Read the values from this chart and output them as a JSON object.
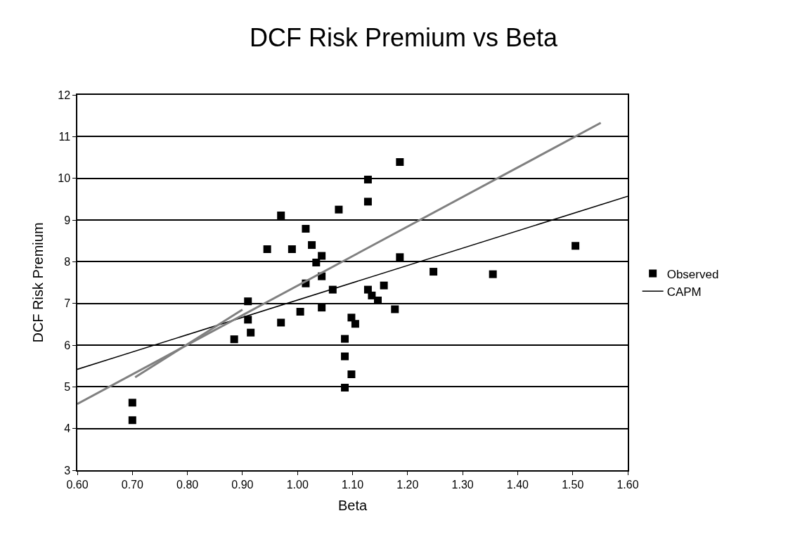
{
  "chart_data": {
    "type": "scatter",
    "title": "DCF Risk Premium vs Beta",
    "xlabel": "Beta",
    "ylabel": "DCF Risk Premium",
    "xlim": [
      0.6,
      1.6
    ],
    "xticks": [
      {
        "value": 0.6,
        "label": "0.60"
      },
      {
        "value": 0.7,
        "label": "0.70"
      },
      {
        "value": 0.8,
        "label": "0.80"
      },
      {
        "value": 0.9,
        "label": "0.90"
      },
      {
        "value": 1.0,
        "label": "1.00"
      },
      {
        "value": 1.1,
        "label": "1.10"
      },
      {
        "value": 1.2,
        "label": "1.20"
      },
      {
        "value": 1.3,
        "label": "1.30"
      },
      {
        "value": 1.4,
        "label": "1.40"
      },
      {
        "value": 1.5,
        "label": "1.50"
      },
      {
        "value": 1.6,
        "label": "1.60"
      }
    ],
    "ylim": [
      3,
      12
    ],
    "yticks": [
      3,
      4,
      5,
      6,
      7,
      8,
      9,
      10,
      11,
      12
    ],
    "grid": "y",
    "legend": "right",
    "series": [
      {
        "name": "Observed",
        "marker": "square",
        "color": "#000000",
        "x": [
          0.7,
          0.7,
          0.885,
          0.91,
          0.91,
          0.915,
          0.945,
          0.97,
          0.97,
          0.99,
          1.005,
          1.015,
          1.015,
          1.026,
          1.034,
          1.044,
          1.044,
          1.044,
          1.064,
          1.075,
          1.086,
          1.086,
          1.086,
          1.098,
          1.098,
          1.105,
          1.128,
          1.128,
          1.128,
          1.135,
          1.146,
          1.157,
          1.177,
          1.186,
          1.186,
          1.247,
          1.355,
          1.505
        ],
        "values": [
          4.62,
          4.2,
          6.14,
          7.05,
          6.61,
          6.3,
          8.3,
          9.11,
          6.54,
          8.3,
          6.8,
          8.79,
          7.48,
          8.4,
          7.98,
          8.14,
          7.65,
          6.9,
          7.33,
          9.25,
          6.15,
          5.73,
          4.98,
          6.66,
          5.3,
          6.51,
          9.97,
          9.44,
          7.33,
          7.19,
          7.07,
          7.43,
          6.86,
          10.39,
          8.11,
          7.76,
          7.7,
          8.38
        ]
      },
      {
        "name": "CAPM",
        "type": "line",
        "marker": "none",
        "color": "#000000",
        "x": [
          0.6,
          1.6
        ],
        "values": [
          5.42,
          9.57
        ]
      },
      {
        "type": "line",
        "marker": "none",
        "color": "#808080",
        "x": [
          0.6,
          1.551
        ],
        "values": [
          4.59,
          11.33
        ]
      },
      {
        "type": "line",
        "marker": "none",
        "color": "#808080",
        "x": [
          0.705,
          0.9
        ],
        "values": [
          5.23,
          6.85
        ]
      }
    ]
  }
}
